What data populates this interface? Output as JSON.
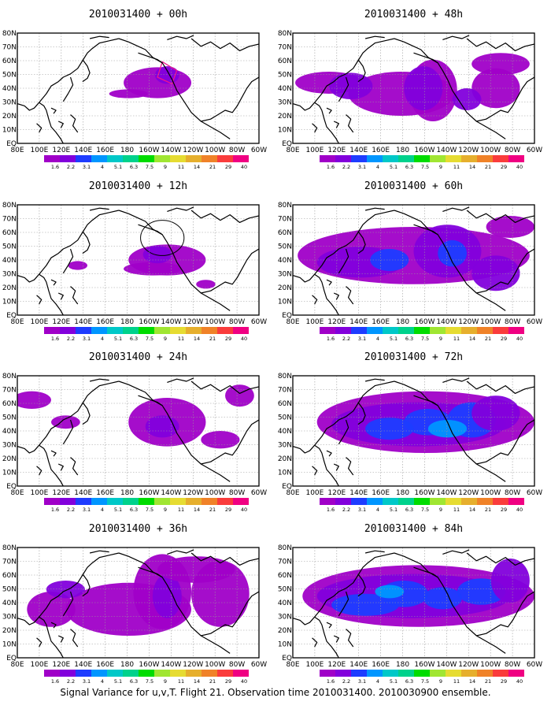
{
  "caption": "Signal Variance for u,v,T. Flight 21. Observation time 2010031400. 2010030900 ensemble.",
  "lat_labels": [
    "80N",
    "70N",
    "60N",
    "50N",
    "40N",
    "30N",
    "20N",
    "10N",
    "EQ"
  ],
  "lon_labels": [
    "80E",
    "100E",
    "120E",
    "140E",
    "160E",
    "180",
    "160W",
    "140W",
    "120W",
    "100W",
    "80W",
    "60W"
  ],
  "colorbar": {
    "labels": [
      "1.6",
      "2.2",
      "3.1",
      "4",
      "5.1",
      "6.3",
      "7.5",
      "9",
      "11",
      "14",
      "21",
      "29",
      "40"
    ],
    "colors": [
      "#a000c8",
      "#8200dc",
      "#1e3cff",
      "#0096ff",
      "#00c8c8",
      "#00d28c",
      "#00dc00",
      "#a0e632",
      "#e6dc32",
      "#e6af2d",
      "#f08228",
      "#fa3c3c",
      "#f00082"
    ]
  },
  "panels": [
    {
      "title": "2010031400 + 00h",
      "level": 0
    },
    {
      "title": "2010031400 + 48h",
      "level": 4
    },
    {
      "title": "2010031400 + 12h",
      "level": 1
    },
    {
      "title": "2010031400 + 60h",
      "level": 5
    },
    {
      "title": "2010031400 + 24h",
      "level": 2
    },
    {
      "title": "2010031400 + 72h",
      "level": 6
    },
    {
      "title": "2010031400 + 36h",
      "level": 3
    },
    {
      "title": "2010031400 + 84h",
      "level": 7
    }
  ]
}
